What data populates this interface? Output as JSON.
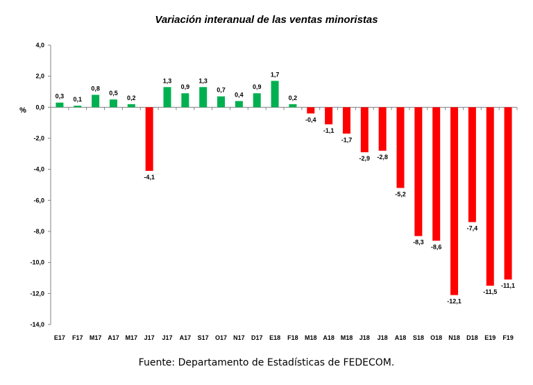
{
  "chart_data": {
    "type": "bar",
    "title": "Variación interanual de las ventas minoristas",
    "ylabel": "%",
    "xlabel": "",
    "ylim": [
      -14,
      4
    ],
    "yticks": [
      4,
      2,
      0,
      -2,
      -4,
      -6,
      -8,
      -10,
      -12,
      -14
    ],
    "ytick_labels": [
      "4,0",
      "2,0",
      "0,0",
      "-2,0",
      "-4,0",
      "-6,0",
      "-8,0",
      "-10,0",
      "-12,0",
      "-14,0"
    ],
    "grid": false,
    "categories": [
      "E17",
      "F17",
      "M17",
      "A17",
      "M17",
      "J17",
      "J17",
      "A17",
      "S17",
      "O17",
      "N17",
      "D17",
      "E18",
      "F18",
      "M18",
      "A18",
      "M18",
      "J18",
      "J18",
      "A18",
      "S18",
      "O18",
      "N18",
      "D18",
      "E19",
      "F19"
    ],
    "values": [
      0.3,
      0.1,
      0.8,
      0.5,
      0.2,
      -4.1,
      1.3,
      0.9,
      1.3,
      0.7,
      0.4,
      0.9,
      1.7,
      0.2,
      -0.4,
      -1.1,
      -1.7,
      -2.9,
      -2.8,
      -5.2,
      -8.3,
      -8.6,
      -12.1,
      -7.4,
      -11.5,
      -11.1
    ],
    "value_labels": [
      "0,3",
      "0,1",
      "0,8",
      "0,5",
      "0,2",
      "-4,1",
      "1,3",
      "0,9",
      "1,3",
      "0,7",
      "0,4",
      "0,9",
      "1,7",
      "0,2",
      "-0,4",
      "-1,1",
      "-1,7",
      "-2,9",
      "-2,8",
      "-5,2",
      "-8,3",
      "-8,6",
      "-12,1",
      "-7,4",
      "-11,5",
      "-11,1"
    ],
    "colors": {
      "positive": "#00b050",
      "negative": "#ff0000"
    }
  },
  "footer": {
    "source": "Fuente: Departamento de Estadísticas de FEDECOM."
  }
}
